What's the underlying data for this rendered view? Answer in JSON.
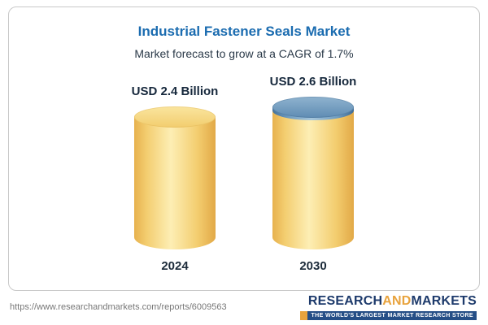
{
  "chart": {
    "title": "Industrial Fastener Seals Market",
    "subtitle": "Market forecast to grow at a CAGR of 1.7%"
  },
  "chart_data": {
    "type": "bar",
    "title": "Industrial Fastener Seals Market",
    "subtitle": "Market forecast to grow at a CAGR of 1.7%",
    "categories": [
      "2024",
      "2030"
    ],
    "values": [
      2.4,
      2.6
    ],
    "value_labels": [
      "USD 2.4 Billion",
      "USD 2.6 Billion"
    ],
    "unit": "USD Billion",
    "cagr": "1.7%",
    "ylim": [
      0,
      3
    ],
    "grid": false,
    "legend": "none",
    "bar_style": "3d-cylinder",
    "colors": {
      "bar_body": "#f3cd6f",
      "bar_2030_cap": "#6f9cc0",
      "title": "#1b6cb0"
    }
  },
  "bars": [
    {
      "year": "2024",
      "label": "USD 2.4 Billion",
      "value": 2.4
    },
    {
      "year": "2030",
      "label": "USD 2.6 Billion",
      "value": 2.6
    }
  ],
  "footer": {
    "url": "https://www.researchandmarkets.com/reports/6009563",
    "logo": {
      "part1": "RESEARCH",
      "part2": "AND",
      "part3": "MARKETS",
      "tagline": "THE WORLD'S LARGEST MARKET RESEARCH STORE"
    }
  }
}
